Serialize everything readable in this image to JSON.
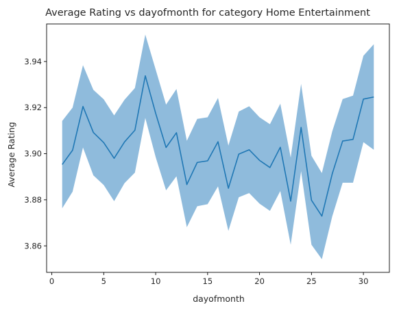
{
  "chart_data": {
    "type": "line",
    "title": "Average Rating vs dayofmonth for category Home Entertainment",
    "xlabel": "dayofmonth",
    "ylabel": "Average Rating",
    "xlim": [
      -0.5,
      32.5
    ],
    "ylim": [
      3.8485,
      3.9563
    ],
    "xticks": [
      0,
      5,
      10,
      15,
      20,
      25,
      30
    ],
    "yticks": [
      3.86,
      3.88,
      3.9,
      3.92,
      3.94
    ],
    "ytick_labels": [
      "3.86",
      "3.88",
      "3.90",
      "3.92",
      "3.94"
    ],
    "grid": false,
    "colors": {
      "line": "#1f77b4",
      "band": "#8fbbdc"
    },
    "series": [
      {
        "x": [
          1,
          2,
          3,
          4,
          5,
          6,
          7,
          8,
          9,
          10,
          11,
          12,
          13,
          14,
          15,
          16,
          17,
          18,
          19,
          20,
          21,
          22,
          23,
          24,
          25,
          26,
          27,
          28,
          29,
          30,
          31
        ],
        "mean": [
          3.8953,
          3.9015,
          3.9205,
          3.9092,
          3.9048,
          3.898,
          3.9051,
          3.9102,
          3.9338,
          3.9175,
          3.9027,
          3.9091,
          3.8866,
          3.8962,
          3.8969,
          3.9052,
          3.885,
          3.8998,
          3.9017,
          3.8971,
          3.894,
          3.9028,
          3.8794,
          3.9114,
          3.8798,
          3.8729,
          3.8913,
          3.9055,
          3.9062,
          3.9237,
          3.9246
        ],
        "lower": [
          3.8763,
          3.8835,
          3.9027,
          3.8906,
          3.8864,
          3.8794,
          3.8872,
          3.8918,
          3.9155,
          3.8985,
          3.8841,
          3.8902,
          3.8681,
          3.8772,
          3.8781,
          3.8858,
          3.8665,
          3.8811,
          3.8829,
          3.8783,
          3.8752,
          3.8838,
          3.8605,
          3.8924,
          3.8605,
          3.8542,
          3.8728,
          3.8874,
          3.8874,
          3.905,
          3.9017
        ],
        "upper": [
          3.9142,
          3.92,
          3.9384,
          3.9277,
          3.9236,
          3.9166,
          3.9234,
          3.9285,
          3.9517,
          3.9365,
          3.9213,
          3.9281,
          3.9056,
          3.9151,
          3.9158,
          3.9242,
          3.9035,
          3.9183,
          3.9206,
          3.9158,
          3.9128,
          3.9217,
          3.8983,
          3.9303,
          3.8991,
          3.8916,
          3.9097,
          3.9237,
          3.9252,
          3.9425,
          3.9475
        ]
      }
    ]
  }
}
